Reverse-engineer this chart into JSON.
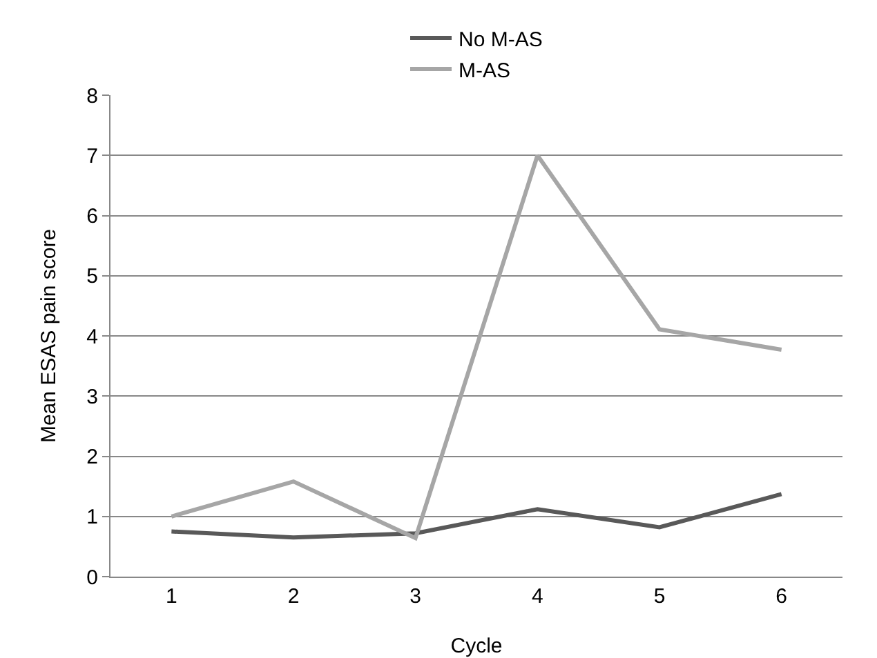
{
  "chart_data": {
    "type": "line",
    "xlabel": "Cycle",
    "ylabel": "Mean ESAS pain score",
    "categories": [
      "1",
      "2",
      "3",
      "4",
      "5",
      "6"
    ],
    "series": [
      {
        "name": "No M-AS",
        "color": "#595959",
        "values": [
          0.75,
          0.65,
          0.72,
          1.12,
          0.82,
          1.37
        ]
      },
      {
        "name": "M-AS",
        "color": "#a6a6a6",
        "values": [
          1.0,
          1.58,
          0.64,
          7.0,
          4.11,
          3.77
        ]
      }
    ],
    "ylim": [
      0,
      8
    ],
    "yticks": [
      0,
      1,
      2,
      3,
      4,
      5,
      6,
      7,
      8
    ],
    "grid": "y",
    "legend": "top",
    "marker": "none",
    "line_style": "solid"
  }
}
